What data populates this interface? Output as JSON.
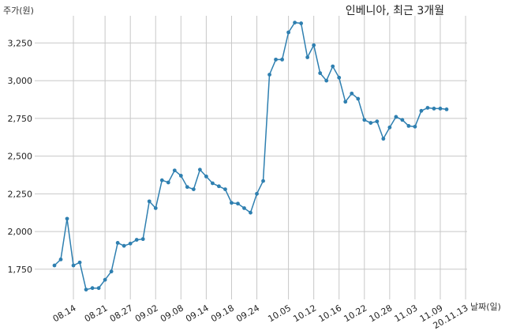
{
  "chart_data": {
    "type": "line",
    "title": "인베니아, 최근 3개월",
    "ylabel": "주가(원)",
    "xlabel": "날짜(일)",
    "ylim": [
      1550,
      3430
    ],
    "y_ticks": [
      1750,
      2000,
      2250,
      2500,
      2750,
      3000,
      3250
    ],
    "y_tick_labels": [
      "1,750",
      "2,000",
      "2,250",
      "2,500",
      "2,750",
      "3,000",
      "3,250"
    ],
    "x_tick_labels": [
      "08.14",
      "08.21",
      "08.27",
      "09.02",
      "09.08",
      "09.14",
      "09.18",
      "09.24",
      "10.05",
      "10.12",
      "10.16",
      "10.22",
      "10.28",
      "11.03",
      "11.09",
      "20.11.13"
    ],
    "x_tick_index": [
      3,
      8,
      12,
      16,
      20,
      24,
      28,
      32,
      37,
      41,
      45,
      49,
      53,
      57,
      61,
      65
    ],
    "grid": true,
    "series": [
      {
        "color": "#2e7fb0",
        "values": [
          1775,
          1815,
          2085,
          1775,
          1795,
          1615,
          1625,
          1625,
          1680,
          1735,
          1925,
          1905,
          1920,
          1945,
          1950,
          2200,
          2155,
          2340,
          2325,
          2405,
          2370,
          2295,
          2280,
          2410,
          2365,
          2320,
          2300,
          2280,
          2190,
          2185,
          2155,
          2125,
          2250,
          2335,
          3040,
          3140,
          3140,
          3320,
          3385,
          3380,
          3155,
          3235,
          3050,
          3000,
          3095,
          3020,
          2860,
          2915,
          2880,
          2740,
          2720,
          2730,
          2615,
          2690,
          2760,
          2740,
          2700,
          2695,
          2800,
          2820,
          2815,
          2815,
          2810
        ]
      }
    ]
  }
}
